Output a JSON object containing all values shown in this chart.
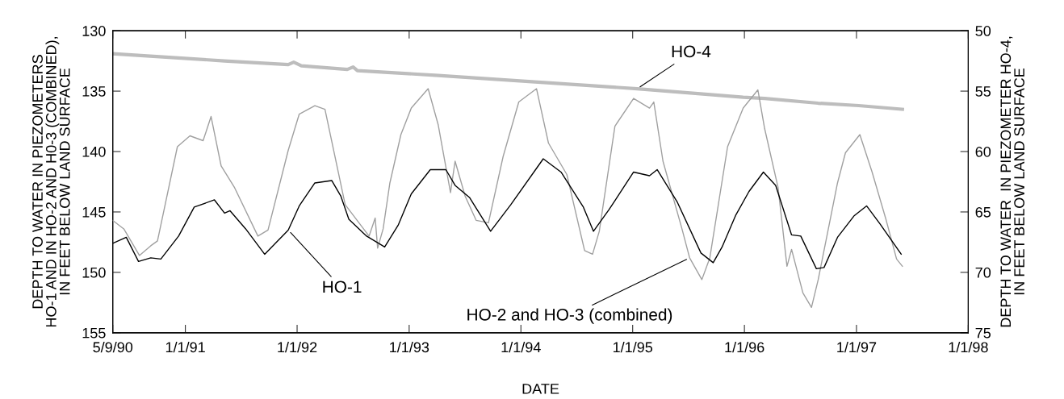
{
  "chart_data": {
    "type": "line",
    "xlabel": "DATE",
    "ylabel": "DEPTH TO WATER IN PIEZOMETERS\nHO-1 AND IN HO-2 AND H0-3 (COMBINED),\nIN FEET BELOW LAND SURFACE",
    "y2label": "DEPTH TO WATER  IN PIEZOMETER HO-4,\nIN FEET BELOW LAND SURFACE",
    "xlim": [
      "1990-05-09",
      "1998-01-01"
    ],
    "xticks": [
      {
        "value": "1990-05-09",
        "label": "5/9/90"
      },
      {
        "value": "1991-01-01",
        "label": "1/1/91"
      },
      {
        "value": "1992-01-01",
        "label": "1/1/92"
      },
      {
        "value": "1993-01-01",
        "label": "1/1/93"
      },
      {
        "value": "1994-01-01",
        "label": "1/1/94"
      },
      {
        "value": "1995-01-01",
        "label": "1/1/95"
      },
      {
        "value": "1996-01-01",
        "label": "1/1/96"
      },
      {
        "value": "1997-01-01",
        "label": "1/1/97"
      },
      {
        "value": "1998-01-01",
        "label": "1/1/98"
      }
    ],
    "ylim": [
      155,
      130
    ],
    "yticks": [
      130,
      135,
      140,
      145,
      150,
      155
    ],
    "y2lim": [
      75,
      50
    ],
    "y2ticks": [
      50,
      55,
      60,
      65,
      70,
      75
    ],
    "grid": false,
    "legend": false,
    "marker": "none",
    "line_style": "solid",
    "series": [
      {
        "name": "HO-2 and HO-3 (combined)",
        "color": "#a0a0a0",
        "x": [
          "1990-05-09",
          "1990-06-14",
          "1990-08-04",
          "1990-09-10",
          "1990-10-02",
          "1990-12-06",
          "1991-01-16",
          "1991-02-28",
          "1991-03-26",
          "1991-04-28",
          "1991-06-11",
          "1991-08-26",
          "1991-09-28",
          "1991-12-03",
          "1992-01-08",
          "1992-02-28",
          "1992-04-01",
          "1992-06-06",
          "1992-08-23",
          "1992-09-12",
          "1992-09-20",
          "1992-10-08",
          "1992-10-30",
          "1992-12-05",
          "1993-01-08",
          "1993-03-04",
          "1993-04-06",
          "1993-05-16",
          "1993-05-31",
          "1993-07-03",
          "1993-08-08",
          "1993-09-17",
          "1993-11-04",
          "1993-12-25",
          "1994-02-21",
          "1994-04-01",
          "1994-05-31",
          "1994-07-28",
          "1994-08-23",
          "1994-09-14",
          "1994-11-04",
          "1995-01-04",
          "1995-02-25",
          "1995-03-11",
          "1995-04-10",
          "1995-06-11",
          "1995-07-06",
          "1995-08-15",
          "1995-09-10",
          "1995-11-07",
          "1995-12-28",
          "1996-02-14",
          "1996-03-07",
          "1996-04-20",
          "1996-05-19",
          "1996-06-03",
          "1996-07-10",
          "1996-08-07",
          "1996-08-29",
          "1996-10-31",
          "1996-11-26",
          "1997-01-12",
          "1997-02-21",
          "1997-04-06",
          "1997-05-12",
          "1997-05-31"
        ],
        "values": [
          145.7,
          146.4,
          148.6,
          147.8,
          147.4,
          139.6,
          138.7,
          139.1,
          137.1,
          141.2,
          143.0,
          147.0,
          146.5,
          139.9,
          136.9,
          136.2,
          136.5,
          144.4,
          147.0,
          145.5,
          148.0,
          146.4,
          142.6,
          138.6,
          136.4,
          134.8,
          137.8,
          143.4,
          140.8,
          143.7,
          145.7,
          145.9,
          140.4,
          135.9,
          134.8,
          139.3,
          141.9,
          148.2,
          148.5,
          146.6,
          137.9,
          135.6,
          136.4,
          135.9,
          140.8,
          146.4,
          148.8,
          150.6,
          148.8,
          139.6,
          136.4,
          134.9,
          138.1,
          143.0,
          149.5,
          148.1,
          151.7,
          152.9,
          150.6,
          142.6,
          140.1,
          138.6,
          141.7,
          145.5,
          148.9,
          149.5
        ]
      },
      {
        "name": "HO-1",
        "color": "#000000",
        "x": [
          "1990-05-09",
          "1990-06-22",
          "1990-08-01",
          "1990-09-10",
          "1990-10-13",
          "1990-12-10",
          "1991-01-30",
          "1991-04-06",
          "1991-05-09",
          "1991-05-27",
          "1991-07-17",
          "1991-09-17",
          "1991-12-03",
          "1992-01-08",
          "1992-02-28",
          "1992-04-23",
          "1992-05-23",
          "1992-06-18",
          "1992-08-15",
          "1992-10-13",
          "1992-11-26",
          "1993-01-08",
          "1993-03-11",
          "1993-05-01",
          "1993-05-31",
          "1993-07-17",
          "1993-09-24",
          "1993-11-29",
          "1994-03-15",
          "1994-05-12",
          "1994-07-24",
          "1994-08-26",
          "1994-10-16",
          "1995-01-04",
          "1995-02-25",
          "1995-03-22",
          "1995-05-27",
          "1995-08-12",
          "1995-09-21",
          "1995-10-20",
          "1995-12-03",
          "1996-01-16",
          "1996-03-03",
          "1996-04-12",
          "1996-06-03",
          "1996-07-03",
          "1996-08-23",
          "1996-09-17",
          "1996-10-31",
          "1996-12-25",
          "1997-02-03",
          "1997-03-19",
          "1997-05-27"
        ],
        "values": [
          147.6,
          147.1,
          149.1,
          148.8,
          148.9,
          147.0,
          144.6,
          144.0,
          145.1,
          144.9,
          146.4,
          148.5,
          146.5,
          144.5,
          142.6,
          142.4,
          143.7,
          145.6,
          147.0,
          147.9,
          146.1,
          143.5,
          141.5,
          141.5,
          142.8,
          143.8,
          146.6,
          144.4,
          140.6,
          141.7,
          144.6,
          146.6,
          144.8,
          141.7,
          142.0,
          141.5,
          144.2,
          148.4,
          149.2,
          147.9,
          145.3,
          143.3,
          141.7,
          142.8,
          146.9,
          147.0,
          149.7,
          149.6,
          147.1,
          145.3,
          144.5,
          146.0,
          148.5
        ]
      },
      {
        "name": "HO-4",
        "color": "#bdbdbd",
        "axis": "y2",
        "x": [
          "1990-05-09",
          "1991-05-09",
          "1991-12-03",
          "1991-12-21",
          "1992-01-15",
          "1992-06-13",
          "1992-07-02",
          "1992-07-16",
          "1993-04-06",
          "1994-01-27",
          "1995-01-16",
          "1995-12-28",
          "1996-03-07",
          "1996-08-29",
          "1997-01-08",
          "1997-05-31"
        ],
        "values": [
          51.9,
          52.5,
          52.8,
          52.6,
          52.9,
          53.2,
          53.0,
          53.3,
          53.7,
          54.2,
          54.8,
          55.5,
          55.6,
          56.0,
          56.2,
          56.5
        ]
      }
    ]
  }
}
